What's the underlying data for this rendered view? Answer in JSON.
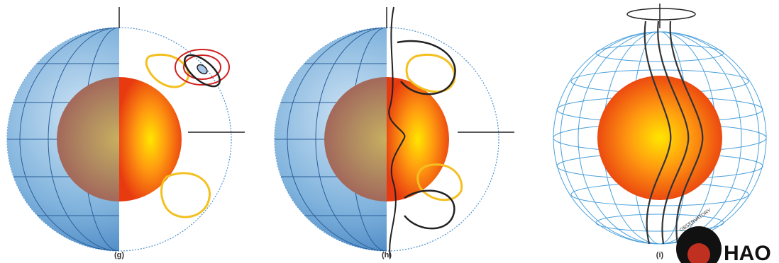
{
  "labels": {
    "g": "(g)",
    "h": "(h)",
    "i": "(i)"
  },
  "logo": {
    "name": "HAO",
    "arc_text": "OBSERVATORY"
  }
}
